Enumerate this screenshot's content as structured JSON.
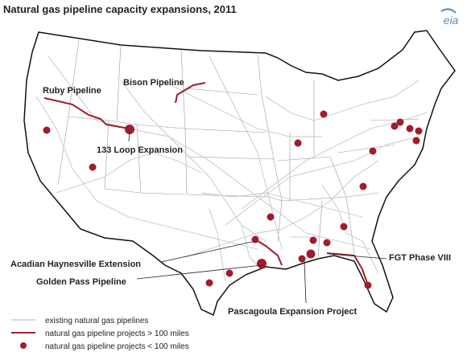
{
  "title": "Natural gas pipeline capacity expansions, 2011",
  "logo": "eia",
  "labels": [
    "Ruby Pipeline",
    "Bison Pipeline",
    "133 Loop Expansion",
    "Acadian Haynesville Extension",
    "Golden Pass Pipeline",
    "FGT Phase VIII",
    "Pascagoula Expansion Project"
  ],
  "legend": [
    "existing natural gas pipelines",
    "natural gas pipeline projects > 100 miles",
    "natural gas pipeline projects < 100 miles"
  ]
}
